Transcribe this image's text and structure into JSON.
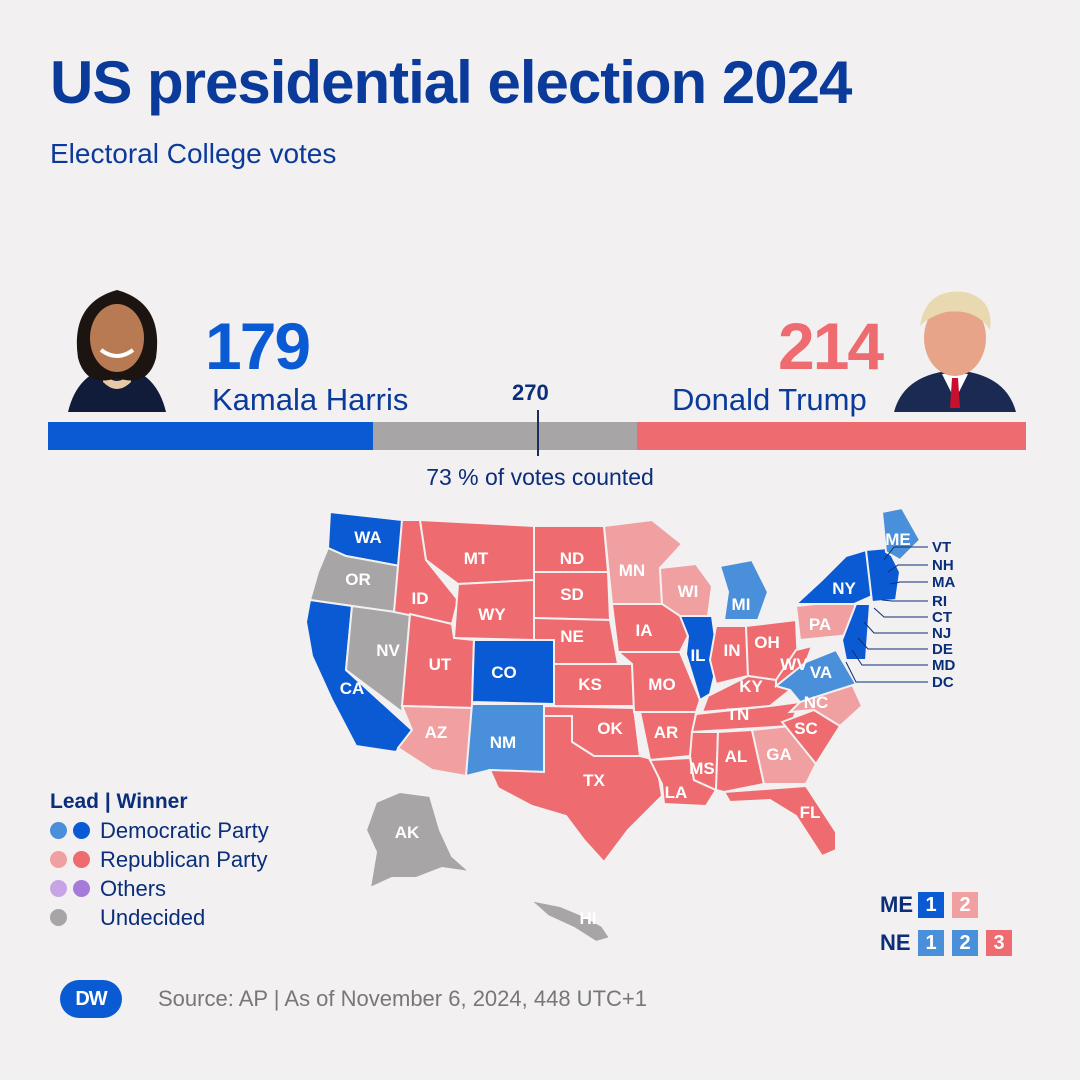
{
  "header": {
    "title": "US presidential election 2024",
    "subtitle": "Electoral College votes"
  },
  "harris": {
    "votes": "179",
    "name": "Kamala Harris",
    "votes_value": 179,
    "color": "#0a5bd3"
  },
  "trump": {
    "votes": "214",
    "name": "Donald Trump",
    "votes_value": 214,
    "color": "#ee6b6f"
  },
  "threshold": {
    "label": "270",
    "value": 270
  },
  "total_votes": 538,
  "counted": "73 % of votes counted",
  "colors": {
    "dem_win": "#0a5bd3",
    "dem_lead": "#4a8fd9",
    "rep_win": "#ee6b6f",
    "rep_lead": "#f1a0a2",
    "undecided": "#a7a5a5",
    "others_lead": "#c7a4e6",
    "others_win": "#a57ad8",
    "bar_gray": "#a7a5a5"
  },
  "legend": {
    "title": "Lead | Winner",
    "items": [
      {
        "label": "Democratic Party",
        "lead": "#4a8fd9",
        "win": "#0a5bd3"
      },
      {
        "label": "Republican Party",
        "lead": "#f1a0a2",
        "win": "#ee6b6f"
      },
      {
        "label": "Others",
        "lead": "#c7a4e6",
        "win": "#a57ad8"
      },
      {
        "label": "Undecided",
        "lead": "#a7a5a5",
        "win": null
      }
    ]
  },
  "states": {
    "WA": "dem_win",
    "OR": "undecided",
    "CA": "dem_win",
    "NV": "undecided",
    "ID": "rep_win",
    "MT": "rep_win",
    "WY": "rep_win",
    "UT": "rep_win",
    "AZ": "rep_lead",
    "CO": "dem_win",
    "NM": "dem_lead",
    "ND": "rep_win",
    "SD": "rep_win",
    "NE": "rep_win",
    "KS": "rep_win",
    "OK": "rep_win",
    "TX": "rep_win",
    "MN": "rep_lead",
    "IA": "rep_win",
    "MO": "rep_win",
    "AR": "rep_win",
    "LA": "rep_win",
    "WI": "rep_lead",
    "IL": "dem_win",
    "MI": "dem_lead",
    "IN": "rep_win",
    "OH": "rep_win",
    "KY": "rep_win",
    "TN": "rep_win",
    "MS": "rep_win",
    "AL": "rep_win",
    "GA": "rep_lead",
    "FL": "rep_win",
    "SC": "rep_win",
    "NC": "rep_lead",
    "VA": "dem_lead",
    "WV": "rep_win",
    "PA": "rep_lead",
    "NY": "dem_win",
    "ME": "dem_lead",
    "NE_US": "dem_win",
    "AK": "undecided",
    "HI": "undecided"
  },
  "east_labels": [
    "VT",
    "NH",
    "MA",
    "RI",
    "CT",
    "NJ",
    "DE",
    "MD",
    "DC"
  ],
  "splits": {
    "me": {
      "name": "ME",
      "boxes": [
        {
          "t": "1",
          "c": "dem_win"
        },
        {
          "t": "2",
          "c": "rep_lead"
        }
      ]
    },
    "ne": {
      "name": "NE",
      "boxes": [
        {
          "t": "1",
          "c": "dem_lead"
        },
        {
          "t": "2",
          "c": "dem_lead"
        },
        {
          "t": "3",
          "c": "rep_win"
        }
      ]
    }
  },
  "source": "Source: AP | As of November 6, 2024, 448 UTC+1",
  "logo": "DW"
}
